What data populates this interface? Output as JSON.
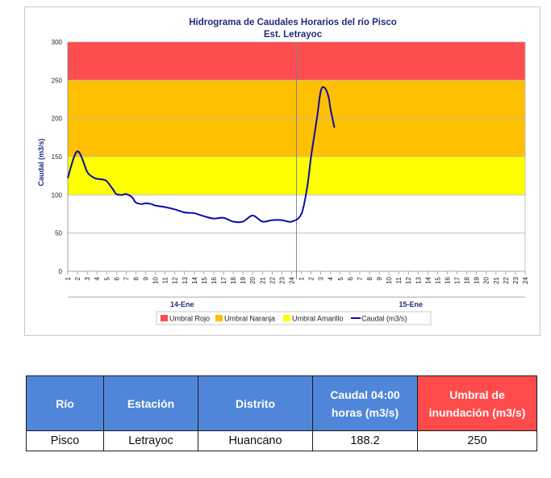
{
  "chart_data": {
    "type": "line",
    "title": "Hidrograma de Caudales Horarios del río Pisco",
    "subtitle": "Est. Letrayoc",
    "ylabel": "Caudal  (m3/s)",
    "ylim": [
      0,
      300
    ],
    "yticks": [
      "0",
      "50",
      "100",
      "150",
      "200",
      "250",
      "300"
    ],
    "x_hour_labels": [
      "1",
      "2",
      "3",
      "4",
      "5",
      "6",
      "7",
      "8",
      "9",
      "10",
      "11",
      "12",
      "13",
      "14",
      "15",
      "16",
      "17",
      "18",
      "19",
      "20",
      "21",
      "22",
      "23",
      "24",
      "1",
      "2",
      "3",
      "4",
      "5",
      "6",
      "7",
      "8",
      "9",
      "10",
      "11",
      "12",
      "13",
      "14",
      "15",
      "16",
      "17",
      "18",
      "19",
      "20",
      "21",
      "22",
      "23",
      "24"
    ],
    "x_days": [
      "14-Ene",
      "15-Ene"
    ],
    "threshold_bands": [
      {
        "name": "Umbral Rojo",
        "from": 250,
        "to": 300,
        "color": "#fe4d4f"
      },
      {
        "name": "Umbral Naranja",
        "from": 150,
        "to": 250,
        "color": "#ffc000"
      },
      {
        "name": "Umbral Amarillo",
        "from": 100,
        "to": 150,
        "color": "#ffff00"
      }
    ],
    "series": [
      {
        "name": "Caudal (m3/s)",
        "color": "#0a0aa8",
        "x": [
          1,
          1.6,
          2,
          2.4,
          3,
          3.6,
          4,
          4.6,
          5,
          5.6,
          6,
          6.6,
          7,
          7.6,
          8,
          8.6,
          9,
          9.6,
          10,
          11,
          12,
          13,
          14,
          15,
          16,
          17,
          18,
          19,
          20,
          21,
          22,
          23,
          24,
          25,
          25.6,
          26,
          26.6,
          27,
          27.4,
          27.8,
          28,
          28.4
        ],
        "y": [
          122,
          148,
          157,
          150,
          130,
          123,
          121,
          120,
          118,
          108,
          101,
          100,
          101,
          97,
          90,
          88,
          89,
          88,
          86,
          84,
          81,
          77,
          76,
          72,
          69,
          70,
          65,
          65,
          73,
          65,
          67,
          67,
          65,
          75,
          110,
          150,
          200,
          236,
          240,
          228,
          212,
          188
        ]
      }
    ],
    "legend_position": "bottom"
  },
  "table": {
    "headers": [
      "Río",
      "Estación",
      "Distrito",
      "Caudal 04:00 horas (m3/s)",
      "Umbral de inundación (m3/s)"
    ],
    "rows": [
      [
        "Pisco",
        "Letrayoc",
        "Huancano",
        "188.2",
        "250"
      ]
    ]
  }
}
